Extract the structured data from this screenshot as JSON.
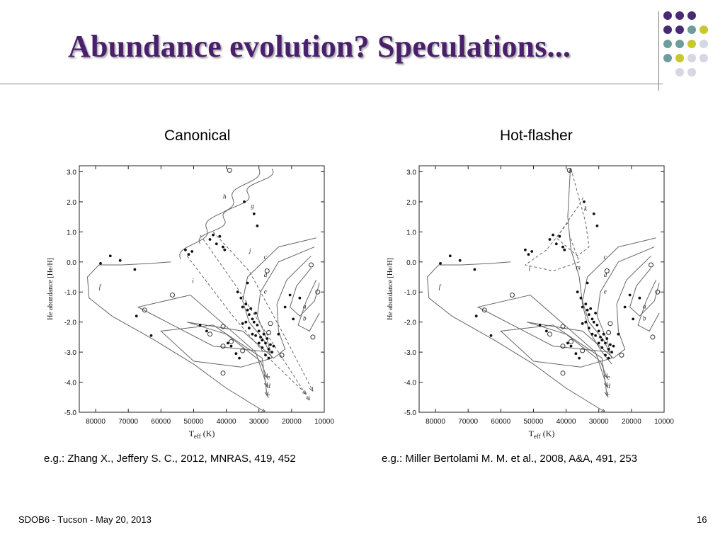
{
  "slide": {
    "title": "Abundance evolution? Speculations...",
    "footer_left": "SDOB6 - Tucson - May 20, 2013",
    "page_number": "16",
    "decor_colors": {
      "purple": "#4a2a72",
      "teal": "#6f9c9c",
      "olive": "#c8c82a",
      "lavender": "#d6d6e4"
    }
  },
  "panels": [
    {
      "label": "Canonical",
      "caption": "e.g.: Zhang X., Jeffery S. C., 2012, MNRAS, 419, 452"
    },
    {
      "label": "Hot-flasher",
      "caption": "e.g.: Miller Bertolami M. M. et al., 2008, A&A, 491, 253"
    }
  ],
  "chart_data": [
    {
      "type": "scatter",
      "xlabel_main": "T",
      "xlabel_sub": "eff",
      "xlabel_unit": " (K)",
      "ylabel": "He abundance [He/H]",
      "xlim": [
        85000,
        10000
      ],
      "ylim": [
        -5.0,
        3.2
      ],
      "xticks": [
        80000,
        70000,
        60000,
        50000,
        40000,
        30000,
        20000,
        10000
      ],
      "yticks": [
        3.0,
        2.0,
        1.0,
        0.0,
        -1.0,
        -2.0,
        -3.0,
        -4.0,
        -5.0
      ],
      "ytick_labels": [
        "3.0",
        "2.0",
        "1.0",
        "0.0",
        "-1.0",
        "-2.0",
        "-3.0",
        "-4.0",
        "-5.0"
      ],
      "points": [
        [
          78500,
          -0.05
        ],
        [
          75500,
          0.2
        ],
        [
          72500,
          0.05
        ],
        [
          68000,
          -0.25
        ],
        [
          67500,
          -1.8
        ],
        [
          63000,
          -2.45
        ],
        [
          48000,
          -2.1
        ],
        [
          46000,
          -2.3
        ],
        [
          45000,
          0.75
        ],
        [
          44000,
          0.9
        ],
        [
          43000,
          0.6
        ],
        [
          42000,
          0.85
        ],
        [
          41000,
          0.5
        ],
        [
          40500,
          0.4
        ],
        [
          52500,
          0.4
        ],
        [
          51500,
          0.25
        ],
        [
          50500,
          0.35
        ],
        [
          34500,
          2.0
        ],
        [
          31500,
          1.6
        ],
        [
          30500,
          1.2
        ],
        [
          35500,
          -1.2
        ],
        [
          35000,
          -1.5
        ],
        [
          34000,
          -1.4
        ],
        [
          33500,
          -1.6
        ],
        [
          33000,
          -1.75
        ],
        [
          32500,
          -1.55
        ],
        [
          32000,
          -1.9
        ],
        [
          31500,
          -2.0
        ],
        [
          31000,
          -1.7
        ],
        [
          30500,
          -2.1
        ],
        [
          30000,
          -2.3
        ],
        [
          29500,
          -2.5
        ],
        [
          29000,
          -2.6
        ],
        [
          28500,
          -2.4
        ],
        [
          28000,
          -2.7
        ],
        [
          27500,
          -2.55
        ],
        [
          27000,
          -2.9
        ],
        [
          26500,
          -2.75
        ],
        [
          26000,
          -3.0
        ],
        [
          25500,
          -2.8
        ],
        [
          34000,
          -2.0
        ],
        [
          33000,
          -2.2
        ],
        [
          32000,
          -2.4
        ],
        [
          31000,
          -2.45
        ],
        [
          30000,
          -2.7
        ],
        [
          29000,
          -2.85
        ],
        [
          28000,
          -3.1
        ],
        [
          27000,
          -3.2
        ],
        [
          24000,
          -2.4
        ],
        [
          22000,
          -1.5
        ],
        [
          20500,
          -1.1
        ],
        [
          19500,
          -1.9
        ],
        [
          17500,
          -1.2
        ],
        [
          39500,
          -2.7
        ],
        [
          38500,
          -2.8
        ],
        [
          37000,
          -3.05
        ],
        [
          36000,
          -3.2
        ],
        [
          35000,
          -2.05
        ],
        [
          36500,
          -1.0
        ],
        [
          33500,
          -0.7
        ]
      ],
      "open_markers": [
        [
          56500,
          -1.1
        ],
        [
          41000,
          -2.15
        ],
        [
          38500,
          -2.65
        ],
        [
          26500,
          -2.05
        ],
        [
          27000,
          -2.35
        ],
        [
          45000,
          -2.4
        ],
        [
          41000,
          -2.8
        ],
        [
          13500,
          -2.5
        ],
        [
          12000,
          -1.0
        ],
        [
          14000,
          -0.1
        ],
        [
          39000,
          3.05
        ],
        [
          35000,
          -2.95
        ],
        [
          23000,
          -3.1
        ],
        [
          41000,
          -3.7
        ],
        [
          65000,
          -1.6
        ],
        [
          27500,
          -0.3
        ]
      ],
      "track_labels": [
        {
          "text": "f",
          "x": 79000,
          "y": -0.9
        },
        {
          "text": "h",
          "x": 41000,
          "y": 2.1
        },
        {
          "text": "g",
          "x": 32500,
          "y": 1.8
        },
        {
          "text": "j",
          "x": 33000,
          "y": 0.3
        },
        {
          "text": "i",
          "x": 50500,
          "y": -0.7
        },
        {
          "text": "c",
          "x": 28500,
          "y": 0.1
        },
        {
          "text": "d",
          "x": 28500,
          "y": -0.5
        },
        {
          "text": "e",
          "x": 28500,
          "y": -1.05
        },
        {
          "text": "a",
          "x": 16500,
          "y": -1.55
        },
        {
          "text": "b",
          "x": 16500,
          "y": -1.95
        },
        {
          "text": "e",
          "x": 27500,
          "y": -3.9
        },
        {
          "text": "d",
          "x": 27500,
          "y": -4.2
        },
        {
          "text": "c",
          "x": 27500,
          "y": -4.5
        }
      ]
    },
    {
      "type": "scatter",
      "xlabel_main": "T",
      "xlabel_sub": "eff",
      "xlabel_unit": " (K)",
      "ylabel": "He abundance [He/H]",
      "xlim": [
        85000,
        10000
      ],
      "ylim": [
        -5.0,
        3.2
      ],
      "xticks": [
        80000,
        70000,
        60000,
        50000,
        40000,
        30000,
        20000,
        10000
      ],
      "yticks": [
        3.0,
        2.0,
        1.0,
        0.0,
        -1.0,
        -2.0,
        -3.0,
        -4.0,
        -5.0
      ],
      "ytick_labels": [
        "3.0",
        "2.0",
        "1.0",
        "0.0",
        "-1.0",
        "-2.0",
        "-3.0",
        "-4.0",
        "-5.0"
      ],
      "points": [
        [
          78500,
          -0.05
        ],
        [
          75500,
          0.2
        ],
        [
          72500,
          0.05
        ],
        [
          68000,
          -0.25
        ],
        [
          67500,
          -1.8
        ],
        [
          63000,
          -2.45
        ],
        [
          48000,
          -2.1
        ],
        [
          46000,
          -2.3
        ],
        [
          45000,
          0.75
        ],
        [
          44000,
          0.9
        ],
        [
          43000,
          0.6
        ],
        [
          42000,
          0.85
        ],
        [
          41000,
          0.5
        ],
        [
          40500,
          0.4
        ],
        [
          52500,
          0.4
        ],
        [
          51500,
          0.25
        ],
        [
          50500,
          0.35
        ],
        [
          34500,
          2.0
        ],
        [
          31500,
          1.6
        ],
        [
          30500,
          1.2
        ],
        [
          35500,
          -1.2
        ],
        [
          35000,
          -1.5
        ],
        [
          34000,
          -1.4
        ],
        [
          33500,
          -1.6
        ],
        [
          33000,
          -1.75
        ],
        [
          32500,
          -1.55
        ],
        [
          32000,
          -1.9
        ],
        [
          31500,
          -2.0
        ],
        [
          31000,
          -1.7
        ],
        [
          30500,
          -2.1
        ],
        [
          30000,
          -2.3
        ],
        [
          29500,
          -2.5
        ],
        [
          29000,
          -2.6
        ],
        [
          28500,
          -2.4
        ],
        [
          28000,
          -2.7
        ],
        [
          27500,
          -2.55
        ],
        [
          27000,
          -2.9
        ],
        [
          26500,
          -2.75
        ],
        [
          26000,
          -3.0
        ],
        [
          25500,
          -2.8
        ],
        [
          34000,
          -2.0
        ],
        [
          33000,
          -2.2
        ],
        [
          32000,
          -2.4
        ],
        [
          31000,
          -2.45
        ],
        [
          30000,
          -2.7
        ],
        [
          29000,
          -2.85
        ],
        [
          28000,
          -3.1
        ],
        [
          27000,
          -3.2
        ],
        [
          24000,
          -2.4
        ],
        [
          22000,
          -1.5
        ],
        [
          20500,
          -1.1
        ],
        [
          19500,
          -1.9
        ],
        [
          17500,
          -1.2
        ],
        [
          39500,
          -2.7
        ],
        [
          38500,
          -2.8
        ],
        [
          37000,
          -3.05
        ],
        [
          36000,
          -3.2
        ],
        [
          35000,
          -2.05
        ],
        [
          36500,
          -1.0
        ],
        [
          33500,
          -0.7
        ]
      ],
      "open_markers": [
        [
          56500,
          -1.1
        ],
        [
          41000,
          -2.15
        ],
        [
          38500,
          -2.65
        ],
        [
          26500,
          -2.05
        ],
        [
          27000,
          -2.35
        ],
        [
          45000,
          -2.4
        ],
        [
          41000,
          -2.8
        ],
        [
          13500,
          -2.5
        ],
        [
          12000,
          -1.0
        ],
        [
          14000,
          -0.1
        ],
        [
          39000,
          3.05
        ],
        [
          35000,
          -2.95
        ],
        [
          23000,
          -3.1
        ],
        [
          41000,
          -3.7
        ],
        [
          65000,
          -1.6
        ],
        [
          27500,
          -0.3
        ]
      ],
      "track_labels": [
        {
          "text": "f",
          "x": 79000,
          "y": -0.9
        },
        {
          "text": "k",
          "x": 34500,
          "y": 1.7
        },
        {
          "text": "l",
          "x": 51500,
          "y": -0.3
        },
        {
          "text": "m",
          "x": 37000,
          "y": -0.25
        },
        {
          "text": "c",
          "x": 28500,
          "y": 0.1
        },
        {
          "text": "d",
          "x": 28500,
          "y": -0.5
        },
        {
          "text": "e",
          "x": 28500,
          "y": -1.05
        },
        {
          "text": "a",
          "x": 16500,
          "y": -1.55
        },
        {
          "text": "b",
          "x": 16500,
          "y": -1.95
        },
        {
          "text": "e",
          "x": 27500,
          "y": -3.9
        },
        {
          "text": "d",
          "x": 27500,
          "y": -4.2
        },
        {
          "text": "c",
          "x": 27500,
          "y": -4.5
        }
      ]
    }
  ]
}
